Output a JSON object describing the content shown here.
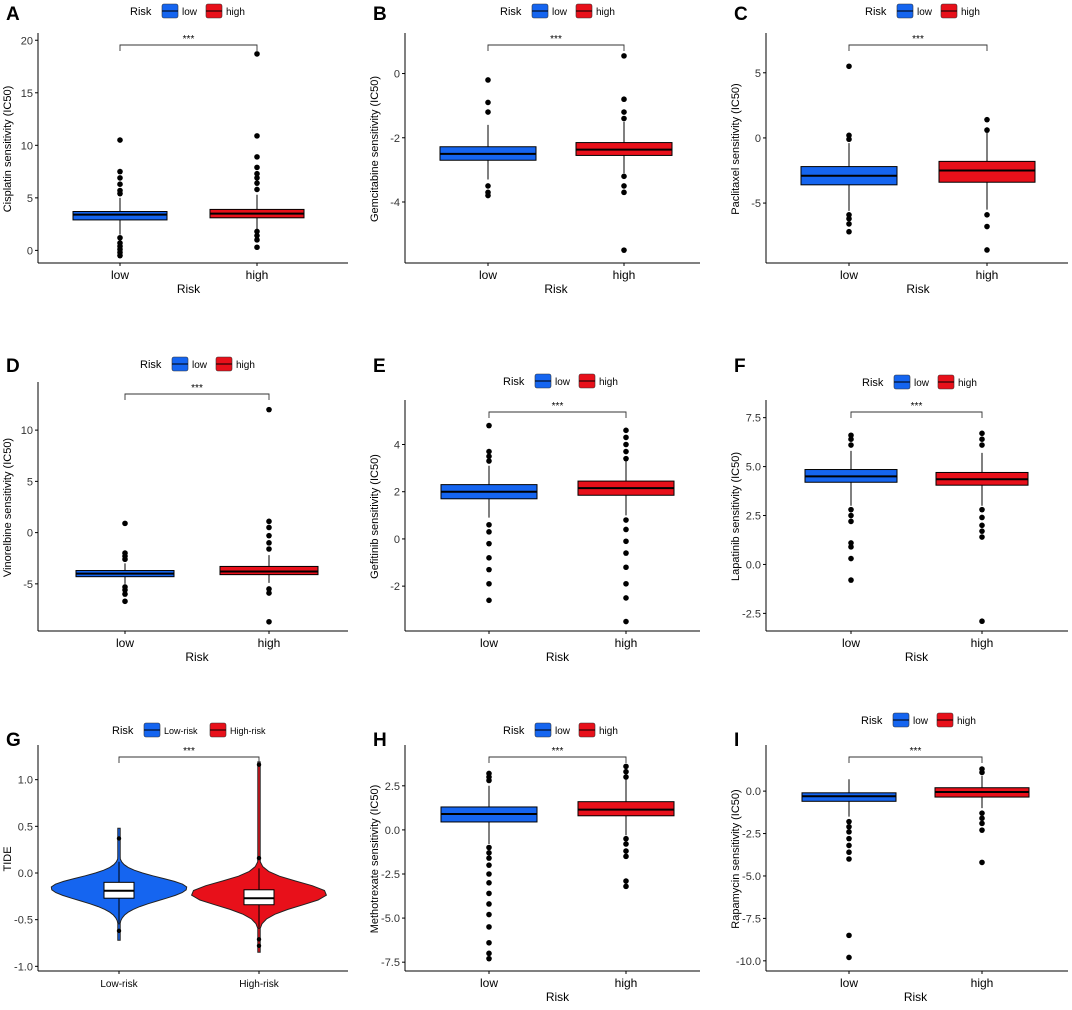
{
  "colors": {
    "low": "#1565f0",
    "high": "#e8101a",
    "axis": "#000000"
  },
  "chart_data": [
    {
      "panel": "A",
      "type": "boxplot",
      "ylabel": "Cisplatin sensitivity (IC50)",
      "xlabel": "Risk",
      "categories": [
        "low",
        "high"
      ],
      "legend_title": "Risk",
      "legend_labels": [
        "low",
        "high"
      ],
      "significance": "***",
      "ylim": [
        -1.2,
        20.5
      ],
      "yticks": [
        0,
        5,
        10,
        15,
        20
      ],
      "ytick_labels": [
        "0",
        "5",
        "10",
        "15",
        "20"
      ],
      "groups": [
        {
          "name": "low",
          "q1": 2.9,
          "median": 3.4,
          "q3": 3.7,
          "whisker_low": 1.5,
          "whisker_high": 5.0,
          "outliers": [
            10.5,
            7.5,
            6.9,
            6.3,
            5.7,
            5.4,
            1.2,
            0.7,
            0.4,
            0.1,
            -0.2,
            -0.5
          ]
        },
        {
          "name": "high",
          "q1": 3.1,
          "median": 3.5,
          "q3": 3.9,
          "whisker_low": 2.0,
          "whisker_high": 5.3,
          "outliers": [
            18.7,
            10.9,
            8.9,
            7.9,
            7.3,
            6.9,
            6.4,
            5.8,
            1.8,
            1.4,
            1.0,
            0.3
          ]
        }
      ]
    },
    {
      "panel": "B",
      "type": "boxplot",
      "ylabel": "Gemcitabine sensitivity (IC50)",
      "xlabel": "Risk",
      "categories": [
        "low",
        "high"
      ],
      "legend_title": "Risk",
      "legend_labels": [
        "low",
        "high"
      ],
      "significance": "***",
      "ylim": [
        -5.9,
        1.2
      ],
      "yticks": [
        -4,
        -2,
        0
      ],
      "ytick_labels": [
        "-4",
        "-2",
        "0"
      ],
      "groups": [
        {
          "name": "low",
          "q1": -2.7,
          "median": -2.5,
          "q3": -2.28,
          "whisker_low": -3.3,
          "whisker_high": -1.6,
          "outliers": [
            -0.2,
            -0.9,
            -1.2,
            -3.5,
            -3.7,
            -3.8
          ]
        },
        {
          "name": "high",
          "q1": -2.55,
          "median": -2.37,
          "q3": -2.15,
          "whisker_low": -3.1,
          "whisker_high": -1.5,
          "outliers": [
            0.55,
            -0.8,
            -1.2,
            -1.4,
            -3.2,
            -3.5,
            -3.7,
            -5.5
          ]
        }
      ]
    },
    {
      "panel": "C",
      "type": "boxplot",
      "ylabel": "Paclitaxel sensitivity (IC50)",
      "xlabel": "Risk",
      "categories": [
        "low",
        "high"
      ],
      "legend_title": "Risk",
      "legend_labels": [
        "low",
        "high"
      ],
      "significance": "***",
      "ylim": [
        -9.6,
        7.9
      ],
      "yticks": [
        -5,
        0,
        5
      ],
      "ytick_labels": [
        "-5",
        "0",
        "5"
      ],
      "groups": [
        {
          "name": "low",
          "q1": -3.6,
          "median": -2.9,
          "q3": -2.2,
          "whisker_low": -5.6,
          "whisker_high": -0.4,
          "outliers": [
            5.5,
            0.2,
            -0.1,
            -5.9,
            -6.2,
            -6.6,
            -7.2
          ]
        },
        {
          "name": "high",
          "q1": -3.4,
          "median": -2.5,
          "q3": -1.8,
          "whisker_low": -5.5,
          "whisker_high": 0.5,
          "outliers": [
            1.4,
            0.6,
            -5.9,
            -6.8,
            -8.6
          ]
        }
      ]
    },
    {
      "panel": "D",
      "type": "boxplot",
      "ylabel": "Vinorelbine sensitivity (IC50)",
      "xlabel": "Risk",
      "categories": [
        "low",
        "high"
      ],
      "legend_title": "Risk",
      "legend_labels": [
        "low",
        "high"
      ],
      "significance": "***",
      "ylim": [
        -9.6,
        14.5
      ],
      "yticks": [
        -5,
        0,
        5,
        10
      ],
      "ytick_labels": [
        "-5",
        "0",
        "5",
        "10"
      ],
      "groups": [
        {
          "name": "low",
          "q1": -4.3,
          "median": -4.0,
          "q3": -3.7,
          "whisker_low": -5.0,
          "whisker_high": -3.0,
          "outliers": [
            0.9,
            -2.0,
            -2.3,
            -2.6,
            -5.3,
            -5.6,
            -6.0,
            -6.7
          ]
        },
        {
          "name": "high",
          "q1": -4.1,
          "median": -3.8,
          "q3": -3.3,
          "whisker_low": -4.9,
          "whisker_high": -2.2,
          "outliers": [
            12.0,
            1.1,
            0.5,
            -0.3,
            -1.0,
            -1.6,
            -5.5,
            -5.9,
            -8.7
          ]
        }
      ]
    },
    {
      "panel": "E",
      "type": "boxplot",
      "ylabel": "Gefitinib sensitivity (IC50)",
      "xlabel": "Risk",
      "categories": [
        "low",
        "high"
      ],
      "legend_title": "Risk",
      "legend_labels": [
        "low",
        "high"
      ],
      "significance": "***",
      "ylim": [
        -3.9,
        5.8
      ],
      "yticks": [
        -2,
        0,
        2,
        4
      ],
      "ytick_labels": [
        "-2",
        "0",
        "2",
        "4"
      ],
      "groups": [
        {
          "name": "low",
          "q1": 1.7,
          "median": 2.0,
          "q3": 2.3,
          "whisker_low": 0.9,
          "whisker_high": 3.1,
          "outliers": [
            4.8,
            3.7,
            3.5,
            3.3,
            0.6,
            0.3,
            -0.2,
            -0.8,
            -1.3,
            -1.9,
            -2.6
          ]
        },
        {
          "name": "high",
          "q1": 1.85,
          "median": 2.15,
          "q3": 2.45,
          "whisker_low": 1.0,
          "whisker_high": 3.3,
          "outliers": [
            4.6,
            4.3,
            4.0,
            3.7,
            3.4,
            0.8,
            0.4,
            -0.1,
            -0.6,
            -1.2,
            -1.9,
            -2.5,
            -3.5
          ]
        }
      ]
    },
    {
      "panel": "F",
      "type": "boxplot",
      "ylabel": "Lapatinib sensitivity (IC50)",
      "xlabel": "Risk",
      "categories": [
        "low",
        "high"
      ],
      "legend_title": "Risk",
      "legend_labels": [
        "low",
        "high"
      ],
      "significance": "***",
      "ylim": [
        -3.4,
        8.3
      ],
      "yticks": [
        -2.5,
        0,
        2.5,
        5,
        7.5
      ],
      "ytick_labels": [
        "-2.5",
        "0.0",
        "2.5",
        "5.0",
        "7.5"
      ],
      "groups": [
        {
          "name": "low",
          "q1": 4.2,
          "median": 4.5,
          "q3": 4.85,
          "whisker_low": 3.0,
          "whisker_high": 5.8,
          "outliers": [
            6.6,
            6.4,
            6.1,
            2.8,
            2.5,
            2.2,
            1.1,
            0.9,
            0.3,
            -0.8
          ]
        },
        {
          "name": "high",
          "q1": 4.05,
          "median": 4.35,
          "q3": 4.7,
          "whisker_low": 3.0,
          "whisker_high": 5.7,
          "outliers": [
            6.7,
            6.4,
            6.1,
            2.8,
            2.4,
            2.0,
            1.7,
            1.4,
            -2.9
          ]
        }
      ]
    },
    {
      "panel": "G",
      "type": "violin",
      "ylabel": "TIDE",
      "xlabel": "",
      "categories": [
        "Low-risk",
        "High-risk"
      ],
      "legend_title": "Risk",
      "legend_labels": [
        "Low-risk",
        "High-risk"
      ],
      "significance": "***",
      "ylim": [
        -1.05,
        1.35
      ],
      "yticks": [
        -1.0,
        -0.5,
        0,
        0.5,
        1.0
      ],
      "ytick_labels": [
        "-1.0",
        "-0.5",
        "0.0",
        "0.5",
        "1.0"
      ],
      "groups": [
        {
          "name": "Low-risk",
          "q1": -0.27,
          "median": -0.19,
          "q3": -0.1,
          "whisker_low": -0.55,
          "whisker_high": 0.12,
          "min": -0.72,
          "max": 0.48,
          "outliers": [
            0.37,
            -0.62
          ],
          "density_peak": -0.16
        },
        {
          "name": "High-risk",
          "q1": -0.34,
          "median": -0.27,
          "q3": -0.18,
          "whisker_low": -0.6,
          "whisker_high": 0.05,
          "min": -0.85,
          "max": 1.19,
          "outliers": [
            1.16,
            0.16,
            -0.71,
            -0.78
          ],
          "density_peak": -0.22
        }
      ]
    },
    {
      "panel": "H",
      "type": "boxplot",
      "ylabel": "Methotrexate sensitivity (IC50)",
      "xlabel": "Risk",
      "categories": [
        "low",
        "high"
      ],
      "legend_title": "Risk",
      "legend_labels": [
        "low",
        "high"
      ],
      "significance": "***",
      "ylim": [
        -8.0,
        4.7
      ],
      "yticks": [
        -7.5,
        -5,
        -2.5,
        0,
        2.5
      ],
      "ytick_labels": [
        "-7.5",
        "-5.0",
        "-2.5",
        "0.0",
        "2.5"
      ],
      "groups": [
        {
          "name": "low",
          "q1": 0.45,
          "median": 0.9,
          "q3": 1.3,
          "whisker_low": -0.8,
          "whisker_high": 2.5,
          "outliers": [
            3.2,
            3.0,
            2.8,
            -1.0,
            -1.3,
            -1.6,
            -2.0,
            -2.5,
            -3.0,
            -3.6,
            -4.2,
            -4.8,
            -5.5,
            -6.4,
            -7.0,
            -7.3
          ]
        },
        {
          "name": "high",
          "q1": 0.8,
          "median": 1.15,
          "q3": 1.6,
          "whisker_low": -0.3,
          "whisker_high": 2.9,
          "outliers": [
            3.6,
            3.3,
            3.0,
            -0.5,
            -0.8,
            -1.2,
            -1.5,
            -2.9,
            -3.2
          ]
        }
      ]
    },
    {
      "panel": "I",
      "type": "boxplot",
      "ylabel": "Rapamycin sensitivity (IC50)",
      "xlabel": "Risk",
      "categories": [
        "low",
        "high"
      ],
      "legend_title": "Risk",
      "legend_labels": [
        "low",
        "high"
      ],
      "significance": "***",
      "ylim": [
        -10.6,
        2.6
      ],
      "yticks": [
        -10,
        -7.5,
        -5,
        -2.5,
        0
      ],
      "ytick_labels": [
        "-10.0",
        "-7.5",
        "-5.0",
        "-2.5",
        "0.0"
      ],
      "groups": [
        {
          "name": "low",
          "q1": -0.6,
          "median": -0.3,
          "q3": -0.1,
          "whisker_low": -1.5,
          "whisker_high": 0.7,
          "outliers": [
            -1.8,
            -2.1,
            -2.4,
            -2.8,
            -3.2,
            -3.6,
            -4.0,
            -8.5,
            -9.8
          ]
        },
        {
          "name": "high",
          "q1": -0.35,
          "median": -0.05,
          "q3": 0.2,
          "whisker_low": -1.0,
          "whisker_high": 0.9,
          "outliers": [
            1.3,
            1.1,
            -1.3,
            -1.6,
            -1.9,
            -2.3,
            -4.2
          ]
        }
      ]
    }
  ]
}
